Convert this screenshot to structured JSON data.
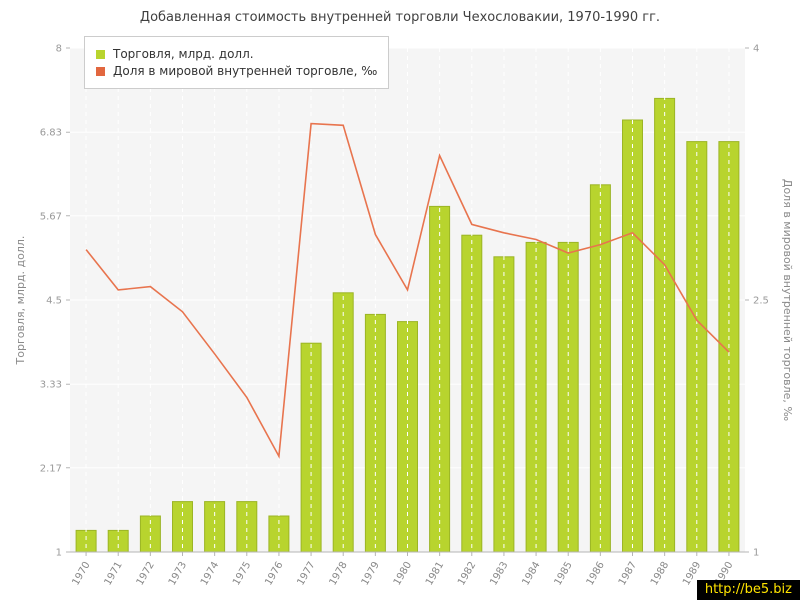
{
  "title": "Добавленная стоимость внутренней торговли Чехословакии, 1970-1990 гг.",
  "watermark": "http://be5.biz",
  "legend": [
    {
      "label": "Торговля, млрд. долл.",
      "color": "#b8d42e"
    },
    {
      "label": "Доля в мировой внутренней торговле, ‰",
      "color": "#e2673f"
    }
  ],
  "chart_data": {
    "type": "bar",
    "title": "Добавленная стоимость внутренней торговли Чехословакии, 1970-1990 гг.",
    "categories": [
      "1970",
      "1971",
      "1972",
      "1973",
      "1974",
      "1975",
      "1976",
      "1977",
      "1978",
      "1979",
      "1980",
      "1981",
      "1982",
      "1983",
      "1984",
      "1985",
      "1986",
      "1987",
      "1988",
      "1989",
      "1990"
    ],
    "series": [
      {
        "name": "Торговля, млрд. долл.",
        "type": "bar",
        "axis": "left",
        "color": "#b8d42e",
        "values": [
          1.3,
          1.3,
          1.5,
          1.7,
          1.7,
          1.7,
          1.5,
          3.9,
          4.6,
          4.3,
          4.2,
          5.8,
          5.4,
          5.1,
          5.3,
          5.3,
          6.1,
          7.0,
          7.3,
          6.7,
          6.7
        ]
      },
      {
        "name": "Доля в мировой внутренней торговле, ‰",
        "type": "line",
        "axis": "right",
        "color": "#e8744e",
        "values": [
          2.8,
          2.56,
          2.58,
          2.43,
          2.18,
          1.92,
          1.57,
          3.55,
          3.54,
          2.89,
          2.56,
          3.36,
          2.95,
          2.9,
          2.86,
          2.78,
          2.83,
          2.9,
          2.71,
          2.38,
          2.19
        ]
      }
    ],
    "axes": {
      "left": {
        "label": "Торговля, млрд. долл.",
        "min": 1,
        "max": 8,
        "ticks": [
          1,
          2.17,
          3.33,
          4.5,
          5.67,
          6.83,
          8
        ]
      },
      "right": {
        "label": "Доля в мировой внутренней торговле, ‰",
        "min": 1,
        "max": 4,
        "ticks": [
          1,
          2.5,
          4
        ]
      }
    },
    "grid": true,
    "legend_position": "top-left",
    "plot_bg": "#f5f5f5"
  }
}
